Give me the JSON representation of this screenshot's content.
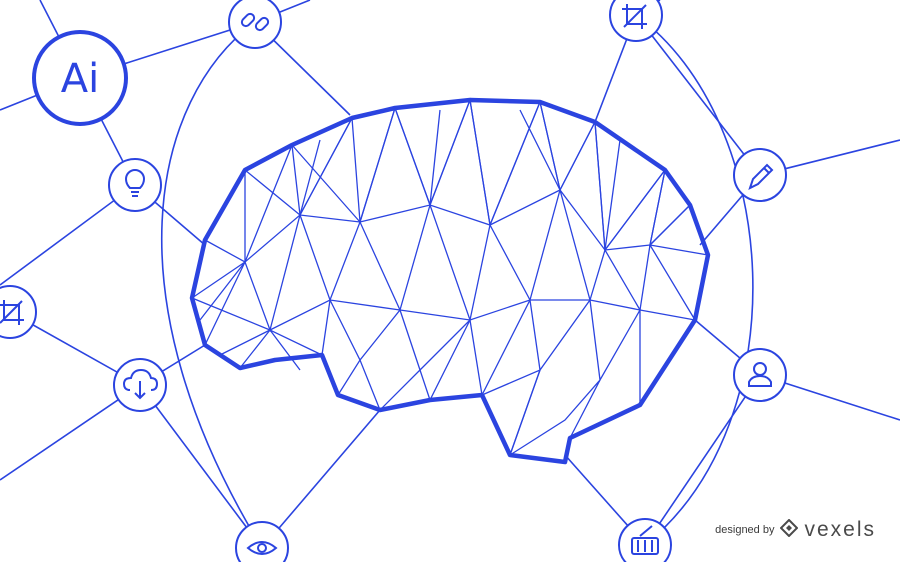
{
  "accent_color": "#2b44e0",
  "ai_badge": {
    "label": "Ai"
  },
  "icons": {
    "top_left": "link-icon",
    "top_right": "crop-icon",
    "right_upper": "pencil-icon",
    "right_lower": "user-icon",
    "bottom_right": "basket-icon",
    "bottom_left": "eye-icon",
    "left_upper": "lightbulb-icon",
    "left_middle": "crop-icon",
    "left_lower": "cloud-download-icon"
  },
  "watermark": {
    "prefix": "designed by",
    "brand": "vexels"
  }
}
